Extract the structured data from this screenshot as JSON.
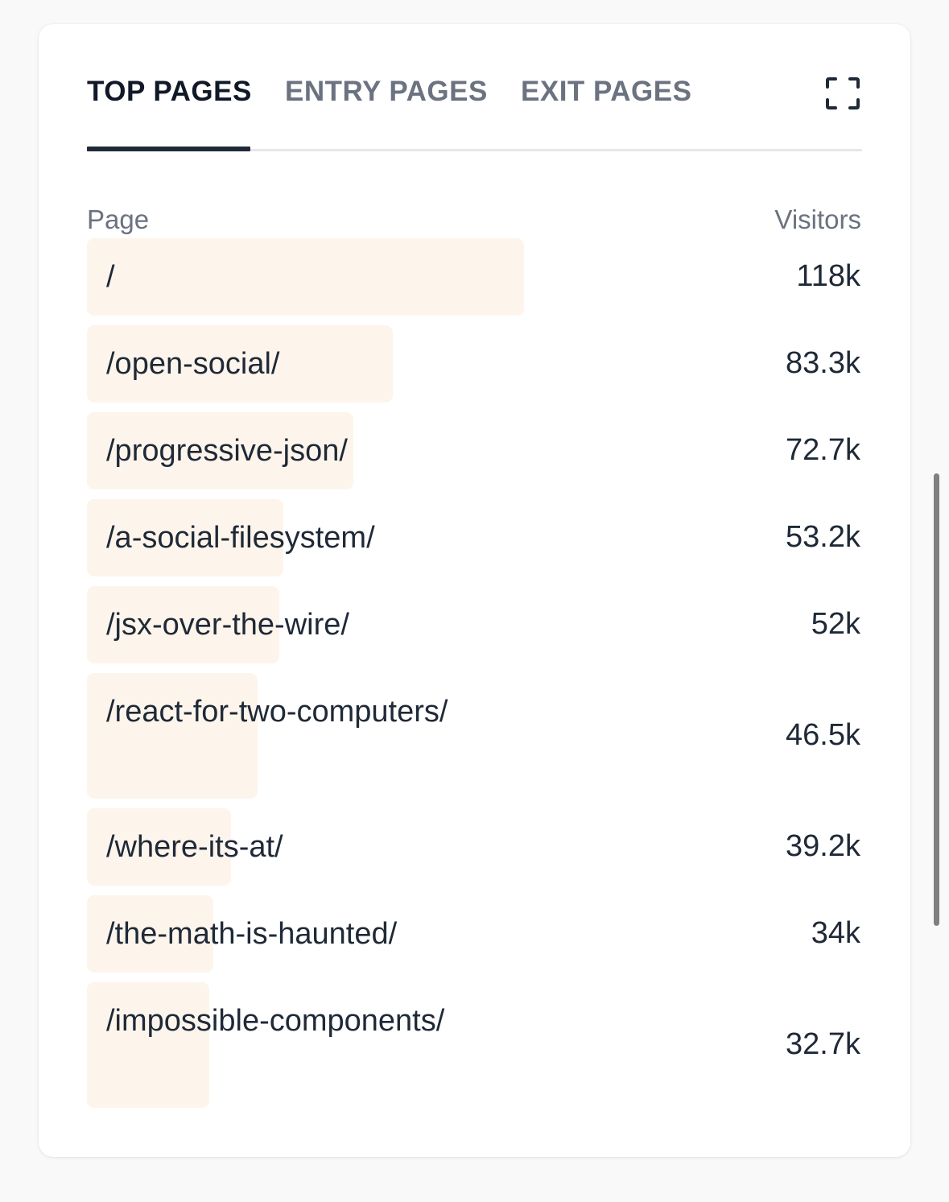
{
  "tabs": [
    {
      "label": "TOP PAGES",
      "active": true
    },
    {
      "label": "ENTRY PAGES",
      "active": false
    },
    {
      "label": "EXIT PAGES",
      "active": false
    }
  ],
  "expand_icon": "expand-icon",
  "columns": {
    "page": "Page",
    "visitors": "Visitors"
  },
  "bar_color": "#fdf5ec",
  "rows": [
    {
      "page": "/",
      "visitors": "118k",
      "bar_fraction": 1.0
    },
    {
      "page": "/open-social/",
      "visitors": "83.3k",
      "bar_fraction": 0.7
    },
    {
      "page": "/progressive-json/",
      "visitors": "72.7k",
      "bar_fraction": 0.61
    },
    {
      "page": "/a-social-filesystem/",
      "visitors": "53.2k",
      "bar_fraction": 0.45
    },
    {
      "page": "/jsx-over-the-wire/",
      "visitors": "52k",
      "bar_fraction": 0.44
    },
    {
      "page": "/react-for-two-computers/",
      "visitors": "46.5k",
      "bar_fraction": 0.39
    },
    {
      "page": "/where-its-at/",
      "visitors": "39.2k",
      "bar_fraction": 0.33
    },
    {
      "page": "/the-math-is-haunted/",
      "visitors": "34k",
      "bar_fraction": 0.29
    },
    {
      "page": "/impossible-components/",
      "visitors": "32.7k",
      "bar_fraction": 0.28
    }
  ]
}
